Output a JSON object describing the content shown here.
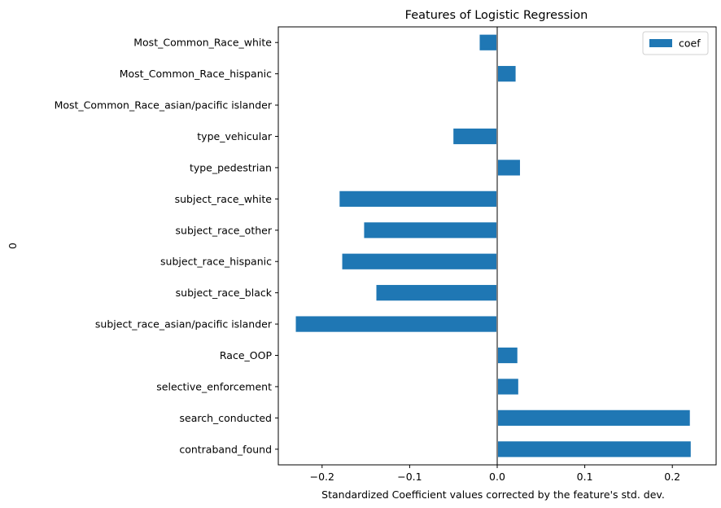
{
  "chart_data": {
    "type": "bar",
    "orientation": "horizontal",
    "title": "Features of Logistic Regression",
    "xlabel": "Standardized Coefficient values corrected by the feature's std. dev.",
    "ylabel": "0",
    "xlim": [
      -0.25,
      0.25
    ],
    "xticks": [
      -0.2,
      -0.1,
      0.0,
      0.1,
      0.2
    ],
    "xtick_labels": [
      "−0.2",
      "−0.1",
      "0.0",
      "0.1",
      "0.2"
    ],
    "categories": [
      "Most_Common_Race_white",
      "Most_Common_Race_hispanic",
      "Most_Common_Race_asian/pacific islander",
      "type_vehicular",
      "type_pedestrian",
      "subject_race_white",
      "subject_race_other",
      "subject_race_hispanic",
      "subject_race_black",
      "subject_race_asian/pacific islander",
      "Race_OOP",
      "selective_enforcement",
      "search_conducted",
      "contraband_found"
    ],
    "series": [
      {
        "name": "coef",
        "color": "#1f77b4",
        "values": [
          -0.02,
          0.021,
          0.0,
          -0.05,
          0.026,
          -0.18,
          -0.152,
          -0.177,
          -0.138,
          -0.23,
          0.023,
          0.024,
          0.22,
          0.221
        ]
      }
    ],
    "reference_line": {
      "x": 0,
      "color": "#808080"
    },
    "legend": {
      "position": "top-right",
      "entries": [
        "coef"
      ]
    },
    "grid": false
  }
}
